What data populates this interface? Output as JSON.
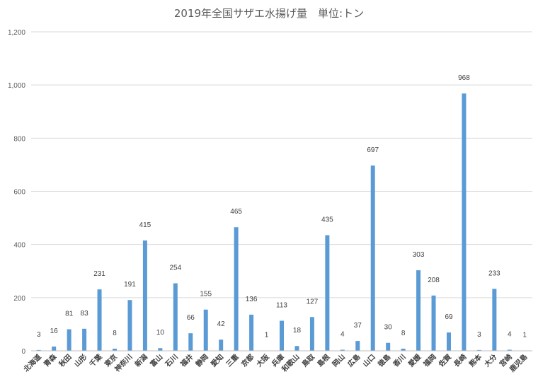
{
  "chart_data": {
    "type": "bar",
    "title": "2019年全国サザエ水揚げ量　単位:トン",
    "xlabel": "",
    "ylabel": "",
    "ylim": [
      0,
      1200
    ],
    "ytick_labels": [
      "0",
      "200",
      "400",
      "600",
      "800",
      "1,000",
      "1,200"
    ],
    "grid": true,
    "legend": "none",
    "bar_color": "#5b9bd5",
    "categories": [
      "北海道",
      "青森",
      "秋田",
      "山形",
      "千葉",
      "東京",
      "神奈川",
      "新潟",
      "富山",
      "石川",
      "福井",
      "静岡",
      "愛知",
      "三重",
      "京都",
      "大阪",
      "兵庫",
      "和歌山",
      "鳥取",
      "島根",
      "岡山",
      "広島",
      "山口",
      "徳島",
      "香川",
      "愛媛",
      "福岡",
      "佐賀",
      "長崎",
      "熊本",
      "大分",
      "宮崎",
      "鹿児島"
    ],
    "values": [
      3,
      16,
      81,
      83,
      231,
      8,
      191,
      415,
      10,
      254,
      66,
      155,
      42,
      465,
      136,
      1,
      113,
      18,
      127,
      435,
      4,
      37,
      697,
      30,
      8,
      303,
      208,
      69,
      968,
      3,
      233,
      4,
      1
    ]
  }
}
